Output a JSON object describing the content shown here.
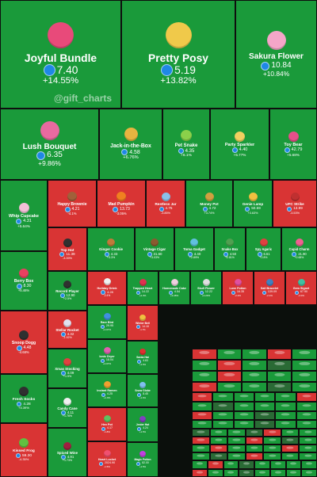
{
  "watermark": "@gift_charts",
  "colors": {
    "up": "#1a9a3a",
    "down": "#d93434",
    "ton": "#1e88e5"
  },
  "tiles": [
    {
      "name": "Joyful Bundle",
      "price": "7.40",
      "change": "+14.55%",
      "dir": "up",
      "icon": "gift-bundle-icon",
      "ic": "#e84a7a"
    },
    {
      "name": "Pretty Posy",
      "price": "5.19",
      "change": "+13.82%",
      "dir": "up",
      "icon": "flower-bouquet-icon",
      "ic": "#f0c94a"
    },
    {
      "name": "Sakura Flower",
      "price": "10.84",
      "change": "+10.84%",
      "dir": "up",
      "icon": "sakura-flower-icon",
      "ic": "#f4a6c8"
    },
    {
      "name": "Lush Bouquet",
      "price": "6.35",
      "change": "+9.86%",
      "dir": "up",
      "icon": "lush-bouquet-icon",
      "ic": "#e86aa0"
    },
    {
      "name": "Jack-in-the-Box",
      "price": "4.58",
      "change": "+6.76%",
      "dir": "up",
      "icon": "jack-in-the-box-icon",
      "ic": "#e8b440"
    },
    {
      "name": "Pet Snake",
      "price": "4.35",
      "change": "+6.1%",
      "dir": "up",
      "icon": "pet-snake-icon",
      "ic": "#8bd04a"
    },
    {
      "name": "Party Sparkler",
      "price": "4.40",
      "change": "+5.77%",
      "dir": "up",
      "icon": "party-sparkler-icon",
      "ic": "#f0d060"
    },
    {
      "name": "Toy Bear",
      "price": "42.79",
      "change": "+5.68%",
      "dir": "up",
      "icon": "toy-bear-icon",
      "ic": "#e8508a"
    },
    {
      "name": "Whip Cupcake",
      "price": "4.31",
      "change": "+5.64%",
      "dir": "up",
      "icon": "cupcake-icon",
      "ic": "#f4c0d8"
    },
    {
      "name": "Happy Brownie",
      "price": "4.21",
      "change": "-4.1%",
      "dir": "down",
      "icon": "brownie-icon",
      "ic": "#a0603a"
    },
    {
      "name": "Mad Pumpkin",
      "price": "13.73",
      "change": "-3.05%",
      "dir": "down",
      "icon": "pumpkin-icon",
      "ic": "#f08020"
    },
    {
      "name": "Restless Jar",
      "price": "4.75",
      "change": "-3.85%",
      "dir": "down",
      "icon": "jar-icon",
      "ic": "#8ac0e8"
    },
    {
      "name": "Money Pot",
      "price": "4.72",
      "change": "+3.74%",
      "dir": "up",
      "icon": "money-pot-icon",
      "ic": "#d0a040"
    },
    {
      "name": "Genie Lamp",
      "price": "50.59",
      "change": "+3.63%",
      "dir": "up",
      "icon": "genie-lamp-icon",
      "ic": "#f0c040"
    },
    {
      "name": "UFC Strike",
      "price": "13.99",
      "change": "-3.53%",
      "dir": "down",
      "icon": "ufc-glove-icon",
      "ic": "#c03030"
    },
    {
      "name": "Top Hat",
      "price": "11.39",
      "change": "-3.39%",
      "dir": "down",
      "icon": "top-hat-icon",
      "ic": "#303030"
    },
    {
      "name": "Ginger Cookie",
      "price": "4.33",
      "change": "+3.3%",
      "dir": "up",
      "icon": "ginger-cookie-icon",
      "ic": "#c07a3a"
    },
    {
      "name": "Vintage Cigar",
      "price": "31.60",
      "change": "+3.03%",
      "dir": "up",
      "icon": "cigar-icon",
      "ic": "#8a5a30"
    },
    {
      "name": "Toma Gadget",
      "price": "4.40",
      "change": "+2.89%",
      "dir": "up",
      "icon": "gadget-icon",
      "ic": "#60c0e0"
    },
    {
      "name": "Snake Box",
      "price": "4.50",
      "change": "+2.81%",
      "dir": "up",
      "icon": "snake-box-icon",
      "ic": "#50a050"
    },
    {
      "name": "Spy Agaric",
      "price": "6.61",
      "change": "+2.8%",
      "dir": "up",
      "icon": "mushroom-icon",
      "ic": "#e04040"
    },
    {
      "name": "Cupid Charm",
      "price": "21.90",
      "change": "+2.68%",
      "dir": "up",
      "icon": "cupid-charm-icon",
      "ic": "#f06090"
    },
    {
      "name": "Berry Box",
      "price": "8.30",
      "change": "+5.46%",
      "dir": "up",
      "icon": "berry-box-icon",
      "ic": "#e84060"
    },
    {
      "name": "Record Player",
      "price": "12.90",
      "change": "+2.5%",
      "dir": "up",
      "icon": "record-player-icon",
      "ic": "#303030"
    },
    {
      "name": "Holiday Drink",
      "price": "4.28",
      "change": "-2.4%",
      "dir": "down",
      "icon": "holiday-drink-icon",
      "ic": "#f0f0f0"
    },
    {
      "name": "Trapped Heart",
      "price": "14.22",
      "change": "+2.3%",
      "dir": "up",
      "icon": "trapped-heart-icon",
      "ic": "#e03050"
    },
    {
      "name": "Homemade Cake",
      "price": "4.54",
      "change": "+2.28%",
      "dir": "up",
      "icon": "cake-icon",
      "ic": "#f0d0e0"
    },
    {
      "name": "Skull Flower",
      "price": "12.22",
      "change": "+2.23%",
      "dir": "up",
      "icon": "skull-flower-icon",
      "ic": "#e0e0e0"
    },
    {
      "name": "Love Potion",
      "price": "16.35",
      "change": "-2.2%",
      "dir": "down",
      "icon": "love-potion-icon",
      "ic": "#e050a0"
    },
    {
      "name": "Sail Bracelet",
      "price": "139.09",
      "change": "-2.1%",
      "dir": "down",
      "icon": "bracelet-icon",
      "ic": "#4080c0"
    },
    {
      "name": "Gem Signet",
      "price": "67.90",
      "change": "-2.0%",
      "dir": "down",
      "icon": "gem-signet-icon",
      "ic": "#40c0a0"
    },
    {
      "name": "Snoop Dogg",
      "price": "4.48",
      "change": "-4.68%",
      "dir": "down",
      "icon": "snoop-dogg-icon",
      "ic": "#303030"
    },
    {
      "name": "Stellar Rocket",
      "price": "4.32",
      "change": "-1.92%",
      "dir": "down",
      "icon": "rocket-icon",
      "ic": "#e0e0f0"
    },
    {
      "name": "Xmas Stocking",
      "price": "4.09",
      "change": "+1.9%",
      "dir": "up",
      "icon": "stocking-icon",
      "ic": "#e04040"
    },
    {
      "name": "Fresh Socks",
      "price": "4.28",
      "change": "+4.39%",
      "dir": "up",
      "icon": "socks-icon",
      "ic": "#303030"
    },
    {
      "name": "Candy Cane",
      "price": "4.11",
      "change": "+1.76%",
      "dir": "up",
      "icon": "candy-cane-icon",
      "ic": "#f0f0f0"
    },
    {
      "name": "Kissed Frog",
      "price": "59.30",
      "change": "-4.35%",
      "dir": "down",
      "icon": "frog-icon",
      "ic": "#60c040"
    },
    {
      "name": "Spiced Wine",
      "price": "4.91",
      "change": "+1.73%",
      "dir": "up",
      "icon": "wine-icon",
      "ic": "#a02040"
    },
    {
      "name": "Rare Bird",
      "price": "29.95",
      "change": "+2.07%",
      "dir": "up",
      "icon": "bird-icon",
      "ic": "#4090e0"
    },
    {
      "name": "Ionic Dryer",
      "price": "18.04",
      "change": "+2.07%",
      "dir": "up",
      "icon": "dryer-icon",
      "ic": "#e060b0"
    },
    {
      "name": "Instant Ramen",
      "price": "4.25",
      "change": "+1.9%",
      "dir": "up",
      "icon": "ramen-icon",
      "ic": "#f0a030"
    },
    {
      "name": "Hex Pot",
      "price": "4.17",
      "change": "-1.8%",
      "dir": "down",
      "icon": "hex-pot-icon",
      "ic": "#60c060"
    },
    {
      "name": "Winter Bell",
      "price": "14.18",
      "change": "-1.7%",
      "dir": "down",
      "icon": "bell-icon",
      "ic": "#f0c040"
    },
    {
      "name": "Santa Hat",
      "price": "4.63",
      "change": "+1.6%",
      "dir": "up",
      "icon": "santa-hat-icon",
      "ic": "#e03030"
    },
    {
      "name": "Snow Globe",
      "price": "8.45",
      "change": "+1.6%",
      "dir": "up",
      "icon": "snow-globe-icon",
      "ic": "#80c0f0"
    },
    {
      "name": "Jester Hat",
      "price": "4.24",
      "change": "+1.5%",
      "dir": "up",
      "icon": "jester-hat-icon",
      "ic": "#8040c0"
    },
    {
      "name": "Magic Potion",
      "price": "82.00",
      "change": "+1.5%",
      "dir": "up",
      "icon": "magic-potion-icon",
      "ic": "#c040e0"
    },
    {
      "name": "Heart Locket",
      "price": "2024.90",
      "change": "-1.5%",
      "dir": "down",
      "icon": "heart-locket-icon",
      "ic": "#f05070"
    }
  ]
}
